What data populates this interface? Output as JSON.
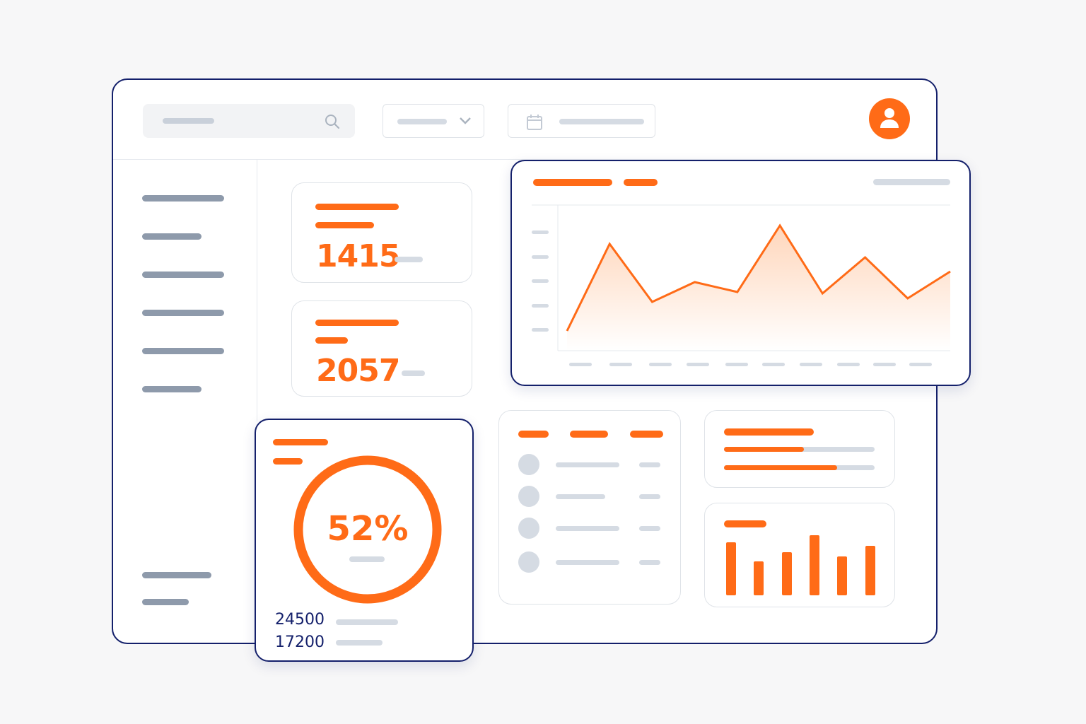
{
  "header": {
    "search_icon": "search-icon",
    "dropdown_icon": "chevron-down-icon",
    "calendar_icon": "calendar-icon",
    "avatar_icon": "user-icon"
  },
  "kpis": [
    {
      "value": "1415"
    },
    {
      "value": "2057"
    }
  ],
  "donut": {
    "percent_label": "52%",
    "percent": 52,
    "stats": [
      {
        "value": "24500"
      },
      {
        "value": "17200"
      }
    ]
  },
  "progress": [
    0.53,
    0.75
  ],
  "colors": {
    "accent": "#ff6b17",
    "frame": "#14206b",
    "placeholder": "#d5dbe3",
    "sidebar": "#8e9aab"
  },
  "chart_data": [
    {
      "type": "area",
      "title": "",
      "x": [
        1,
        2,
        3,
        4,
        5,
        6,
        7,
        8,
        9,
        10
      ],
      "values": [
        28,
        151,
        69,
        97,
        83,
        177,
        81,
        132,
        74,
        112
      ],
      "ylim": [
        0,
        206
      ]
    },
    {
      "type": "bar",
      "values": [
        75,
        48,
        61,
        85,
        55,
        70
      ],
      "ylim": [
        0,
        85
      ]
    }
  ]
}
